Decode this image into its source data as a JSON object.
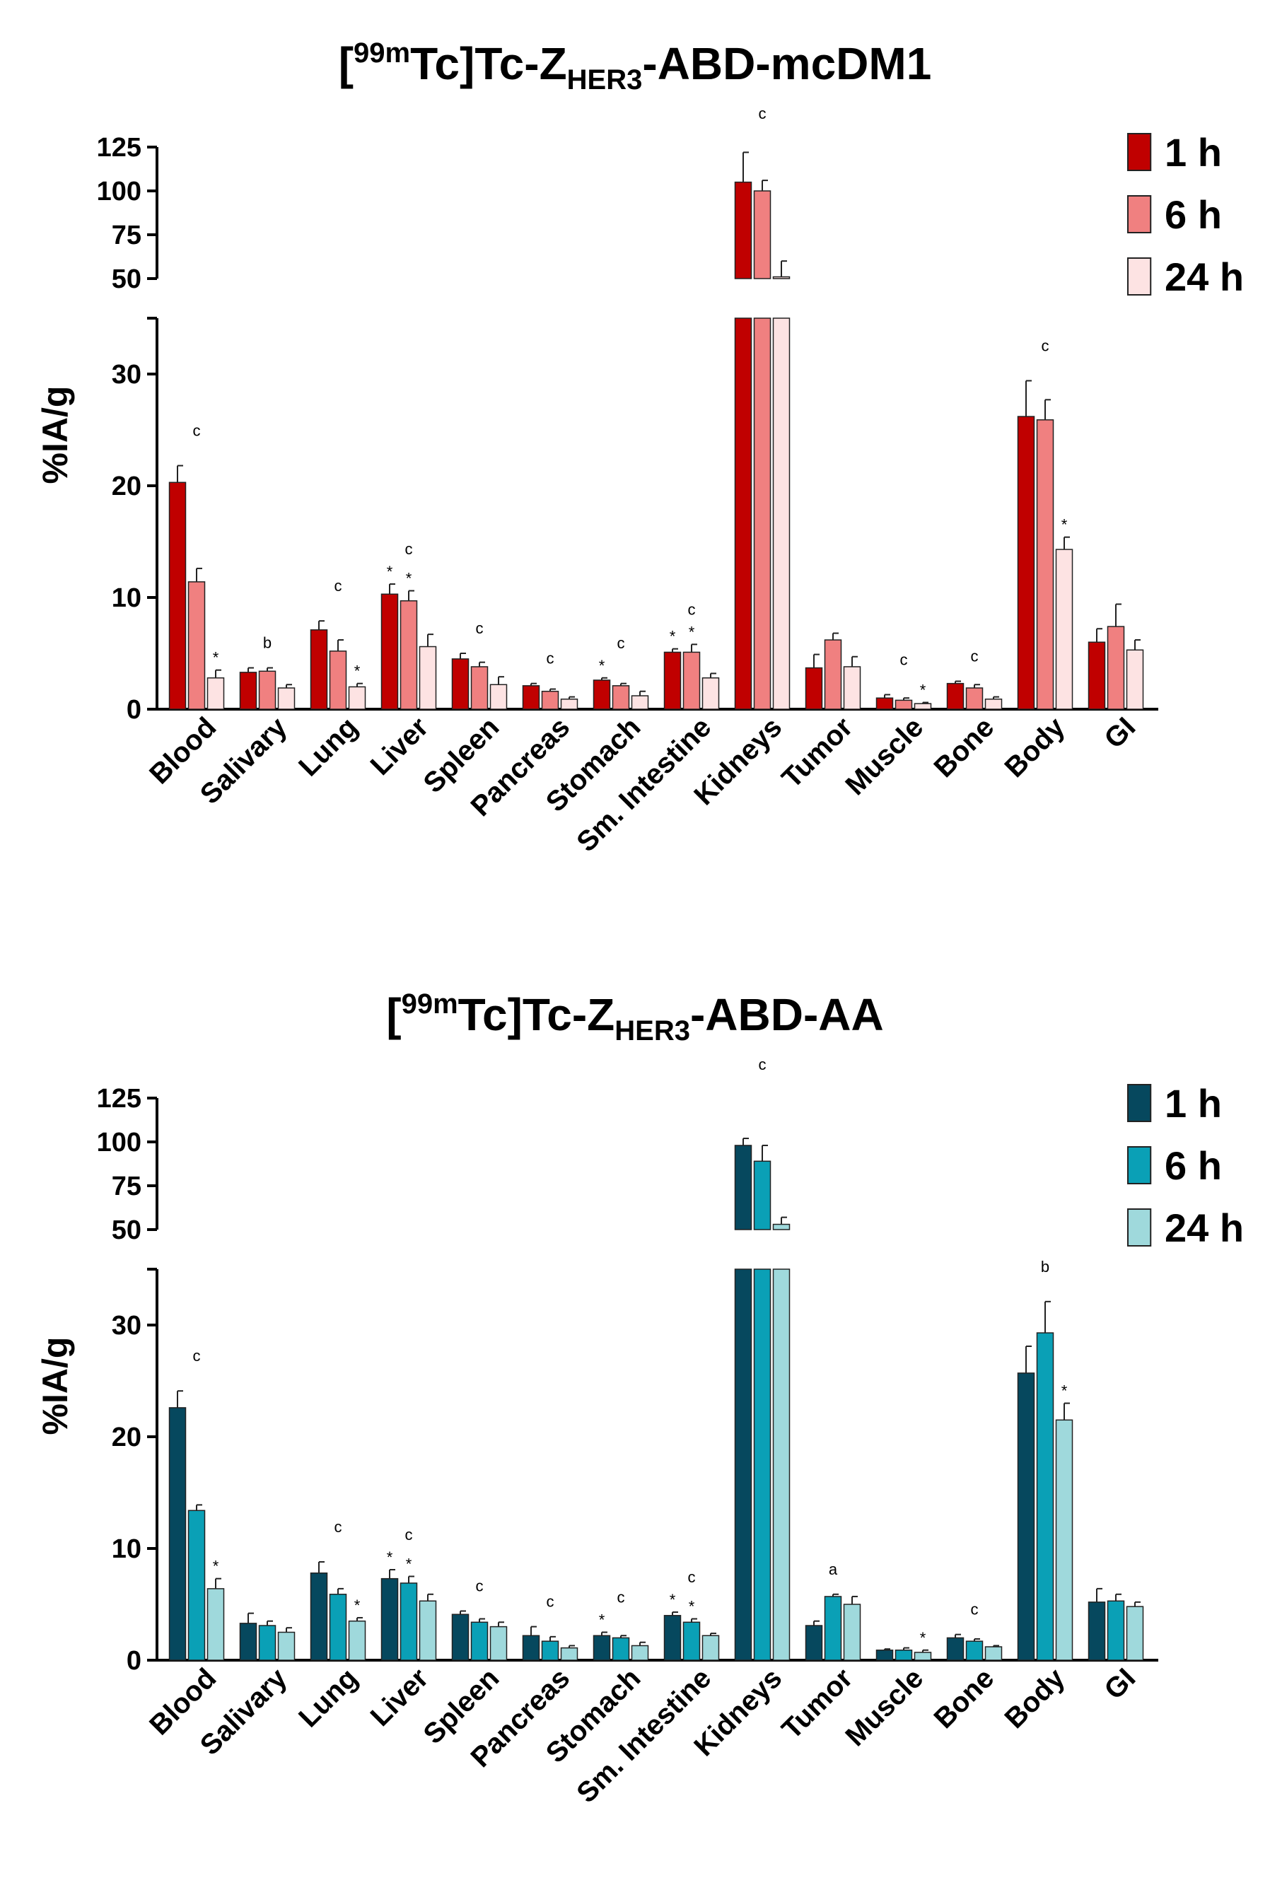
{
  "chart_data": [
    {
      "type": "bar",
      "title": {
        "prefix": "[",
        "sup": "99m",
        "mid": "Tc]Tc-Z",
        "sub": "HER3",
        "suffix": "-ABD-mcDM1"
      },
      "xlabel": "",
      "ylabel": "%IA/g",
      "ylim_lower": [
        0,
        35
      ],
      "yticks_lower": [
        0,
        10,
        20,
        30
      ],
      "ylim_upper": [
        50,
        125
      ],
      "yticks_upper": [
        50,
        75,
        100,
        125
      ],
      "categories": [
        "Blood",
        "Salivary",
        "Lung",
        "Liver",
        "Spleen",
        "Pancreas",
        "Stomach",
        "Sm. Intestine",
        "Kidneys",
        "Tumor",
        "Muscle",
        "Bone",
        "Body",
        "GI"
      ],
      "series": [
        {
          "name": "1 h",
          "color": "#c00000",
          "values": [
            20.3,
            3.3,
            7.1,
            10.3,
            4.5,
            2.1,
            2.6,
            5.1,
            105,
            3.7,
            1.0,
            2.3,
            26.2,
            6.0
          ],
          "errors": [
            1.5,
            0.4,
            0.8,
            0.9,
            0.5,
            0.2,
            0.2,
            0.3,
            17,
            1.2,
            0.3,
            0.2,
            3.2,
            1.2
          ]
        },
        {
          "name": "6 h",
          "color": "#f08080",
          "values": [
            11.4,
            3.4,
            5.2,
            9.7,
            3.8,
            1.6,
            2.1,
            5.1,
            100,
            6.2,
            0.8,
            1.9,
            25.9,
            7.4
          ],
          "errors": [
            1.2,
            0.3,
            1.0,
            0.9,
            0.4,
            0.2,
            0.2,
            0.7,
            6,
            0.6,
            0.2,
            0.3,
            1.8,
            2.0
          ]
        },
        {
          "name": "24 h",
          "color": "#fde3e3",
          "values": [
            2.8,
            1.9,
            2.0,
            5.6,
            2.2,
            0.9,
            1.2,
            2.8,
            51,
            3.8,
            0.5,
            0.9,
            14.3,
            5.3
          ],
          "errors": [
            0.7,
            0.3,
            0.3,
            1.1,
            0.7,
            0.2,
            0.4,
            0.4,
            9,
            0.9,
            0.1,
            0.2,
            1.1,
            0.9
          ]
        }
      ],
      "annotations": [
        {
          "category": "Blood",
          "series": "24 h",
          "text": "*"
        },
        {
          "category": "Blood",
          "text": "c"
        },
        {
          "category": "Salivary",
          "text": "b"
        },
        {
          "category": "Lung",
          "series": "24 h",
          "text": "*"
        },
        {
          "category": "Lung",
          "text": "c"
        },
        {
          "category": "Liver",
          "series": "1 h",
          "text": "*"
        },
        {
          "category": "Liver",
          "series": "6 h",
          "text": "*"
        },
        {
          "category": "Liver",
          "text": "c"
        },
        {
          "category": "Spleen",
          "text": "c"
        },
        {
          "category": "Pancreas",
          "text": "c"
        },
        {
          "category": "Stomach",
          "series": "1 h",
          "text": "*"
        },
        {
          "category": "Stomach",
          "text": "c"
        },
        {
          "category": "Sm. Intestine",
          "series": "1 h",
          "text": "*"
        },
        {
          "category": "Sm. Intestine",
          "series": "6 h",
          "text": "*"
        },
        {
          "category": "Sm. Intestine",
          "text": "c"
        },
        {
          "category": "Kidneys",
          "text": "c"
        },
        {
          "category": "Muscle",
          "series": "24 h",
          "text": "*"
        },
        {
          "category": "Muscle",
          "text": "c"
        },
        {
          "category": "Bone",
          "text": "c"
        },
        {
          "category": "Body",
          "series": "24 h",
          "text": "*"
        },
        {
          "category": "Body",
          "text": "c"
        }
      ]
    },
    {
      "type": "bar",
      "title": {
        "prefix": "[",
        "sup": "99m",
        "mid": "Tc]Tc-Z",
        "sub": "HER3",
        "suffix": "-ABD-AA"
      },
      "xlabel": "",
      "ylabel": "%IA/g",
      "ylim_lower": [
        0,
        35
      ],
      "yticks_lower": [
        0,
        10,
        20,
        30
      ],
      "ylim_upper": [
        50,
        125
      ],
      "yticks_upper": [
        50,
        75,
        100,
        125
      ],
      "categories": [
        "Blood",
        "Salivary",
        "Lung",
        "Liver",
        "Spleen",
        "Pancreas",
        "Stomach",
        "Sm. Intestine",
        "Kidneys",
        "Tumor",
        "Muscle",
        "Bone",
        "Body",
        "GI"
      ],
      "series": [
        {
          "name": "1 h",
          "color": "#06485e",
          "values": [
            22.6,
            3.3,
            7.8,
            7.3,
            4.1,
            2.2,
            2.2,
            4.0,
            98,
            3.1,
            0.9,
            2.0,
            25.7,
            5.2
          ],
          "errors": [
            1.5,
            0.9,
            1.0,
            0.8,
            0.3,
            0.8,
            0.3,
            0.3,
            4,
            0.4,
            0.1,
            0.3,
            2.4,
            1.2
          ]
        },
        {
          "name": "6 h",
          "color": "#0aa0b6",
          "values": [
            13.4,
            3.1,
            5.9,
            6.9,
            3.4,
            1.7,
            2.0,
            3.4,
            89,
            5.7,
            0.9,
            1.7,
            29.3,
            5.3
          ],
          "errors": [
            0.5,
            0.4,
            0.5,
            0.6,
            0.3,
            0.4,
            0.2,
            0.3,
            9,
            0.2,
            0.2,
            0.2,
            2.8,
            0.6
          ]
        },
        {
          "name": "24 h",
          "color": "#9fd9dc",
          "values": [
            6.4,
            2.5,
            3.5,
            5.3,
            3.0,
            1.1,
            1.3,
            2.2,
            53,
            5.0,
            0.7,
            1.2,
            21.5,
            4.8
          ],
          "errors": [
            0.9,
            0.4,
            0.3,
            0.6,
            0.4,
            0.2,
            0.3,
            0.2,
            4,
            0.7,
            0.2,
            0.1,
            1.5,
            0.4
          ]
        }
      ],
      "annotations": [
        {
          "category": "Blood",
          "series": "24 h",
          "text": "*"
        },
        {
          "category": "Blood",
          "text": "c"
        },
        {
          "category": "Lung",
          "series": "24 h",
          "text": "*"
        },
        {
          "category": "Lung",
          "text": "c"
        },
        {
          "category": "Liver",
          "series": "1 h",
          "text": "*"
        },
        {
          "category": "Liver",
          "series": "6 h",
          "text": "*"
        },
        {
          "category": "Liver",
          "text": "c"
        },
        {
          "category": "Spleen",
          "text": "c"
        },
        {
          "category": "Pancreas",
          "text": "c"
        },
        {
          "category": "Stomach",
          "series": "1 h",
          "text": "*"
        },
        {
          "category": "Stomach",
          "text": "c"
        },
        {
          "category": "Sm. Intestine",
          "series": "1 h",
          "text": "*"
        },
        {
          "category": "Sm. Intestine",
          "series": "6 h",
          "text": "*"
        },
        {
          "category": "Sm. Intestine",
          "text": "c"
        },
        {
          "category": "Kidneys",
          "text": "c"
        },
        {
          "category": "Tumor",
          "text": "a"
        },
        {
          "category": "Muscle",
          "series": "24 h",
          "text": "*"
        },
        {
          "category": "Bone",
          "text": "c"
        },
        {
          "category": "Body",
          "series": "24 h",
          "text": "*"
        },
        {
          "category": "Body",
          "text": "b"
        }
      ]
    }
  ]
}
